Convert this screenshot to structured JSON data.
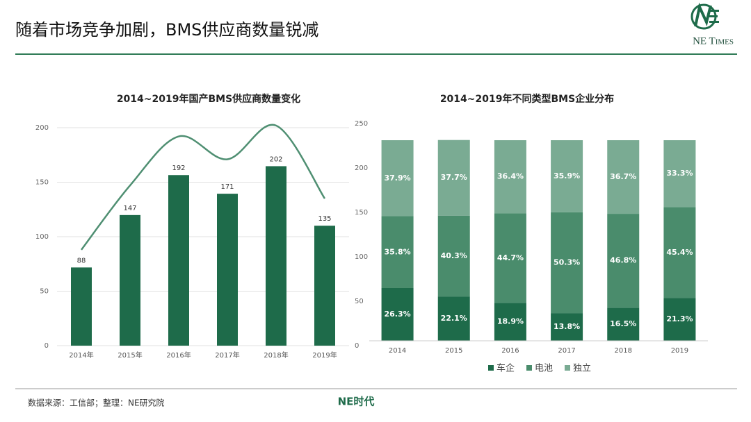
{
  "header": {
    "title": "随着市场竞争加剧，BMS供应商数量锐减",
    "logo": "NE Times"
  },
  "chart_data": [
    {
      "type": "combo",
      "title": "2014~2019年国产BMS供应商数量变化",
      "categories": [
        "2014年",
        "2015年",
        "2016年",
        "2017年",
        "2018年",
        "2019年"
      ],
      "series": [
        {
          "type": "bar",
          "axis": "y2",
          "color": "#1e6b4a",
          "values": [
            88,
            147,
            192,
            171,
            202,
            135
          ]
        },
        {
          "type": "line",
          "smooth": true,
          "color": "#4f8f72",
          "values": [
            88,
            147,
            192,
            171,
            202,
            135
          ]
        }
      ],
      "ylim": [
        0,
        200
      ],
      "yticks": [
        0,
        50,
        100,
        150,
        200
      ],
      "y2lim": [
        0,
        250
      ],
      "y2ticks": [
        0,
        50,
        100,
        150,
        200,
        250
      ],
      "grid": true
    },
    {
      "type": "stacked_bar",
      "title": "2014~2019年不同类型BMS企业分布",
      "categories": [
        "2014",
        "2015",
        "2016",
        "2017",
        "2018",
        "2019"
      ],
      "series": [
        {
          "name": "车企",
          "color": "#1e6b4a",
          "values": [
            26.3,
            22.1,
            18.9,
            13.8,
            16.5,
            21.3
          ],
          "value_labels": [
            "26.3%",
            "22.1%",
            "18.9%",
            "13.8%",
            "16.5%",
            "21.3%"
          ]
        },
        {
          "name": "电池",
          "color": "#4a8c6c",
          "values": [
            35.8,
            40.3,
            44.7,
            50.3,
            46.8,
            45.4
          ],
          "value_labels": [
            "35.8%",
            "40.3%",
            "44.7%",
            "50.3%",
            "46.8%",
            "45.4%"
          ]
        },
        {
          "name": "独立",
          "color": "#7aab93",
          "values": [
            37.9,
            37.7,
            36.4,
            35.9,
            36.7,
            33.3
          ],
          "value_labels": [
            "37.9%",
            "37.7%",
            "36.4%",
            "35.9%",
            "36.7%",
            "33.3%"
          ]
        }
      ],
      "ylim": [
        0,
        100
      ],
      "legend": "bottom"
    }
  ],
  "footer": {
    "source": "数据来源：工信部；整理：NE研究院",
    "brand": "NE时代"
  }
}
